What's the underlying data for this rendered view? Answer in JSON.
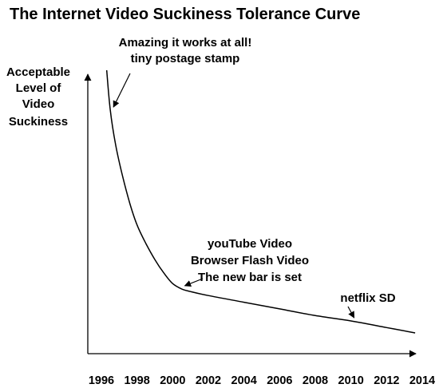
{
  "chart_data": {
    "type": "line",
    "title": "The Internet Video Suckiness Tolerance Curve",
    "ylabel_lines": [
      "Acceptable",
      "Level of",
      "Video",
      "Suckiness"
    ],
    "xlabel": "",
    "x_ticks": [
      "1996",
      "1998",
      "2000",
      "2002",
      "2004",
      "2006",
      "2008",
      "2010",
      "2012",
      "2014"
    ],
    "xlim": [
      1996,
      2014
    ],
    "ylim": [
      0,
      100
    ],
    "y_tick_labels": false,
    "grid": false,
    "legend": "none",
    "series": [
      {
        "x": [
          1996.3,
          1996.5,
          1996.8,
          1997.2,
          1997.6,
          1998.0,
          1998.5,
          1999.0,
          1999.5,
          2000.0,
          2000.5,
          2001.0,
          2002.0,
          2004.0,
          2006.0,
          2008.0,
          2010.0,
          2012.0,
          2013.6
        ],
        "y": [
          100,
          85,
          72,
          60,
          50,
          42,
          35,
          29,
          24,
          20,
          18,
          17,
          15.5,
          13,
          10.5,
          8,
          6,
          3.5,
          1.5
        ]
      }
    ],
    "annotations": [
      {
        "lines": [
          "Amazing it works at all!",
          "tiny postage stamp"
        ],
        "x": 1996.5,
        "y": 85
      },
      {
        "lines": [
          "youTube Video",
          "Browser Flash Video",
          "The new bar is set"
        ],
        "x": 2000.5,
        "y": 18
      },
      {
        "lines": [
          "netflix SD"
        ],
        "x": 2010.0,
        "y": 6
      }
    ]
  }
}
